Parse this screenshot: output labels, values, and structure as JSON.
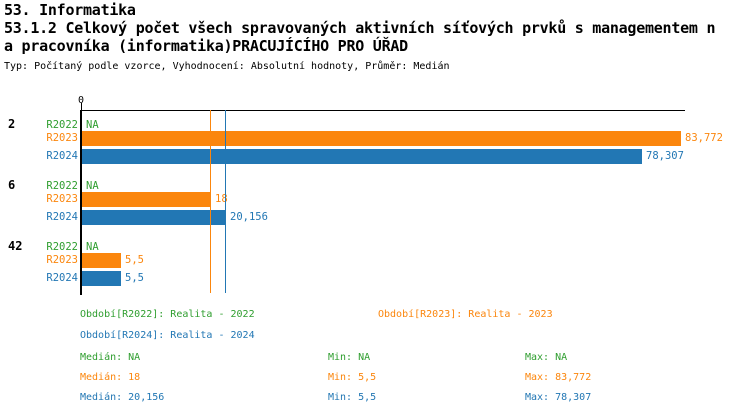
{
  "header": {
    "line1": "53. Informatika",
    "line2": "53.1.2 Celkový počet všech spravovaných aktivních síťových prvků s managementem n",
    "line3": "a pracovníka (informatika)PRACUJÍCÍHO PRO ÚŘAD",
    "line4": "Typ: Počítaný podle vzorce, Vyhodnocení: Absolutní hodnoty, Průměr: Medián"
  },
  "colors": {
    "series": {
      "R2022": "#2f9e2f",
      "R2023": "#fb860d",
      "R2024": "#2277b4"
    },
    "axis": "#000000"
  },
  "chart_data": {
    "type": "bar",
    "orientation": "horizontal",
    "value_axis": {
      "tick_label": "0",
      "min": 0,
      "max": 83.772,
      "grid": false
    },
    "groups": [
      {
        "label": "2",
        "bars": [
          {
            "series": "R2022",
            "value": null,
            "display": "NA"
          },
          {
            "series": "R2023",
            "value": 83.772,
            "display": "83,772"
          },
          {
            "series": "R2024",
            "value": 78.307,
            "display": "78,307"
          }
        ]
      },
      {
        "label": "6",
        "bars": [
          {
            "series": "R2022",
            "value": null,
            "display": "NA"
          },
          {
            "series": "R2023",
            "value": 18,
            "display": "18"
          },
          {
            "series": "R2024",
            "value": 20.156,
            "display": "20,156"
          }
        ]
      },
      {
        "label": "42",
        "bars": [
          {
            "series": "R2022",
            "value": null,
            "display": "NA"
          },
          {
            "series": "R2023",
            "value": 5.5,
            "display": "5,5"
          },
          {
            "series": "R2024",
            "value": 5.5,
            "display": "5,5"
          }
        ]
      }
    ],
    "median_lines": [
      {
        "series": "R2023",
        "value": 18
      },
      {
        "series": "R2024",
        "value": 20.156
      }
    ],
    "stats": {
      "R2022": {
        "median": null,
        "min": null,
        "max": null
      },
      "R2023": {
        "median": 18,
        "min": 5.5,
        "max": 83.772
      },
      "R2024": {
        "median": 20.156,
        "min": 5.5,
        "max": 78.307
      }
    }
  },
  "legend": {
    "r2022": "Období[R2022]: Realita - 2022",
    "r2023": "Období[R2023]: Realita - 2023",
    "r2024": "Období[R2024]: Realita - 2024"
  },
  "stats_rows": [
    {
      "series": "R2022",
      "median": "Medián: NA",
      "min": "Min: NA",
      "max": "Max: NA"
    },
    {
      "series": "R2023",
      "median": "Medián: 18",
      "min": "Min: 5,5",
      "max": "Max: 83,772"
    },
    {
      "series": "R2024",
      "median": "Medián: 20,156",
      "min": "Min: 5,5",
      "max": "Max: 78,307"
    }
  ]
}
